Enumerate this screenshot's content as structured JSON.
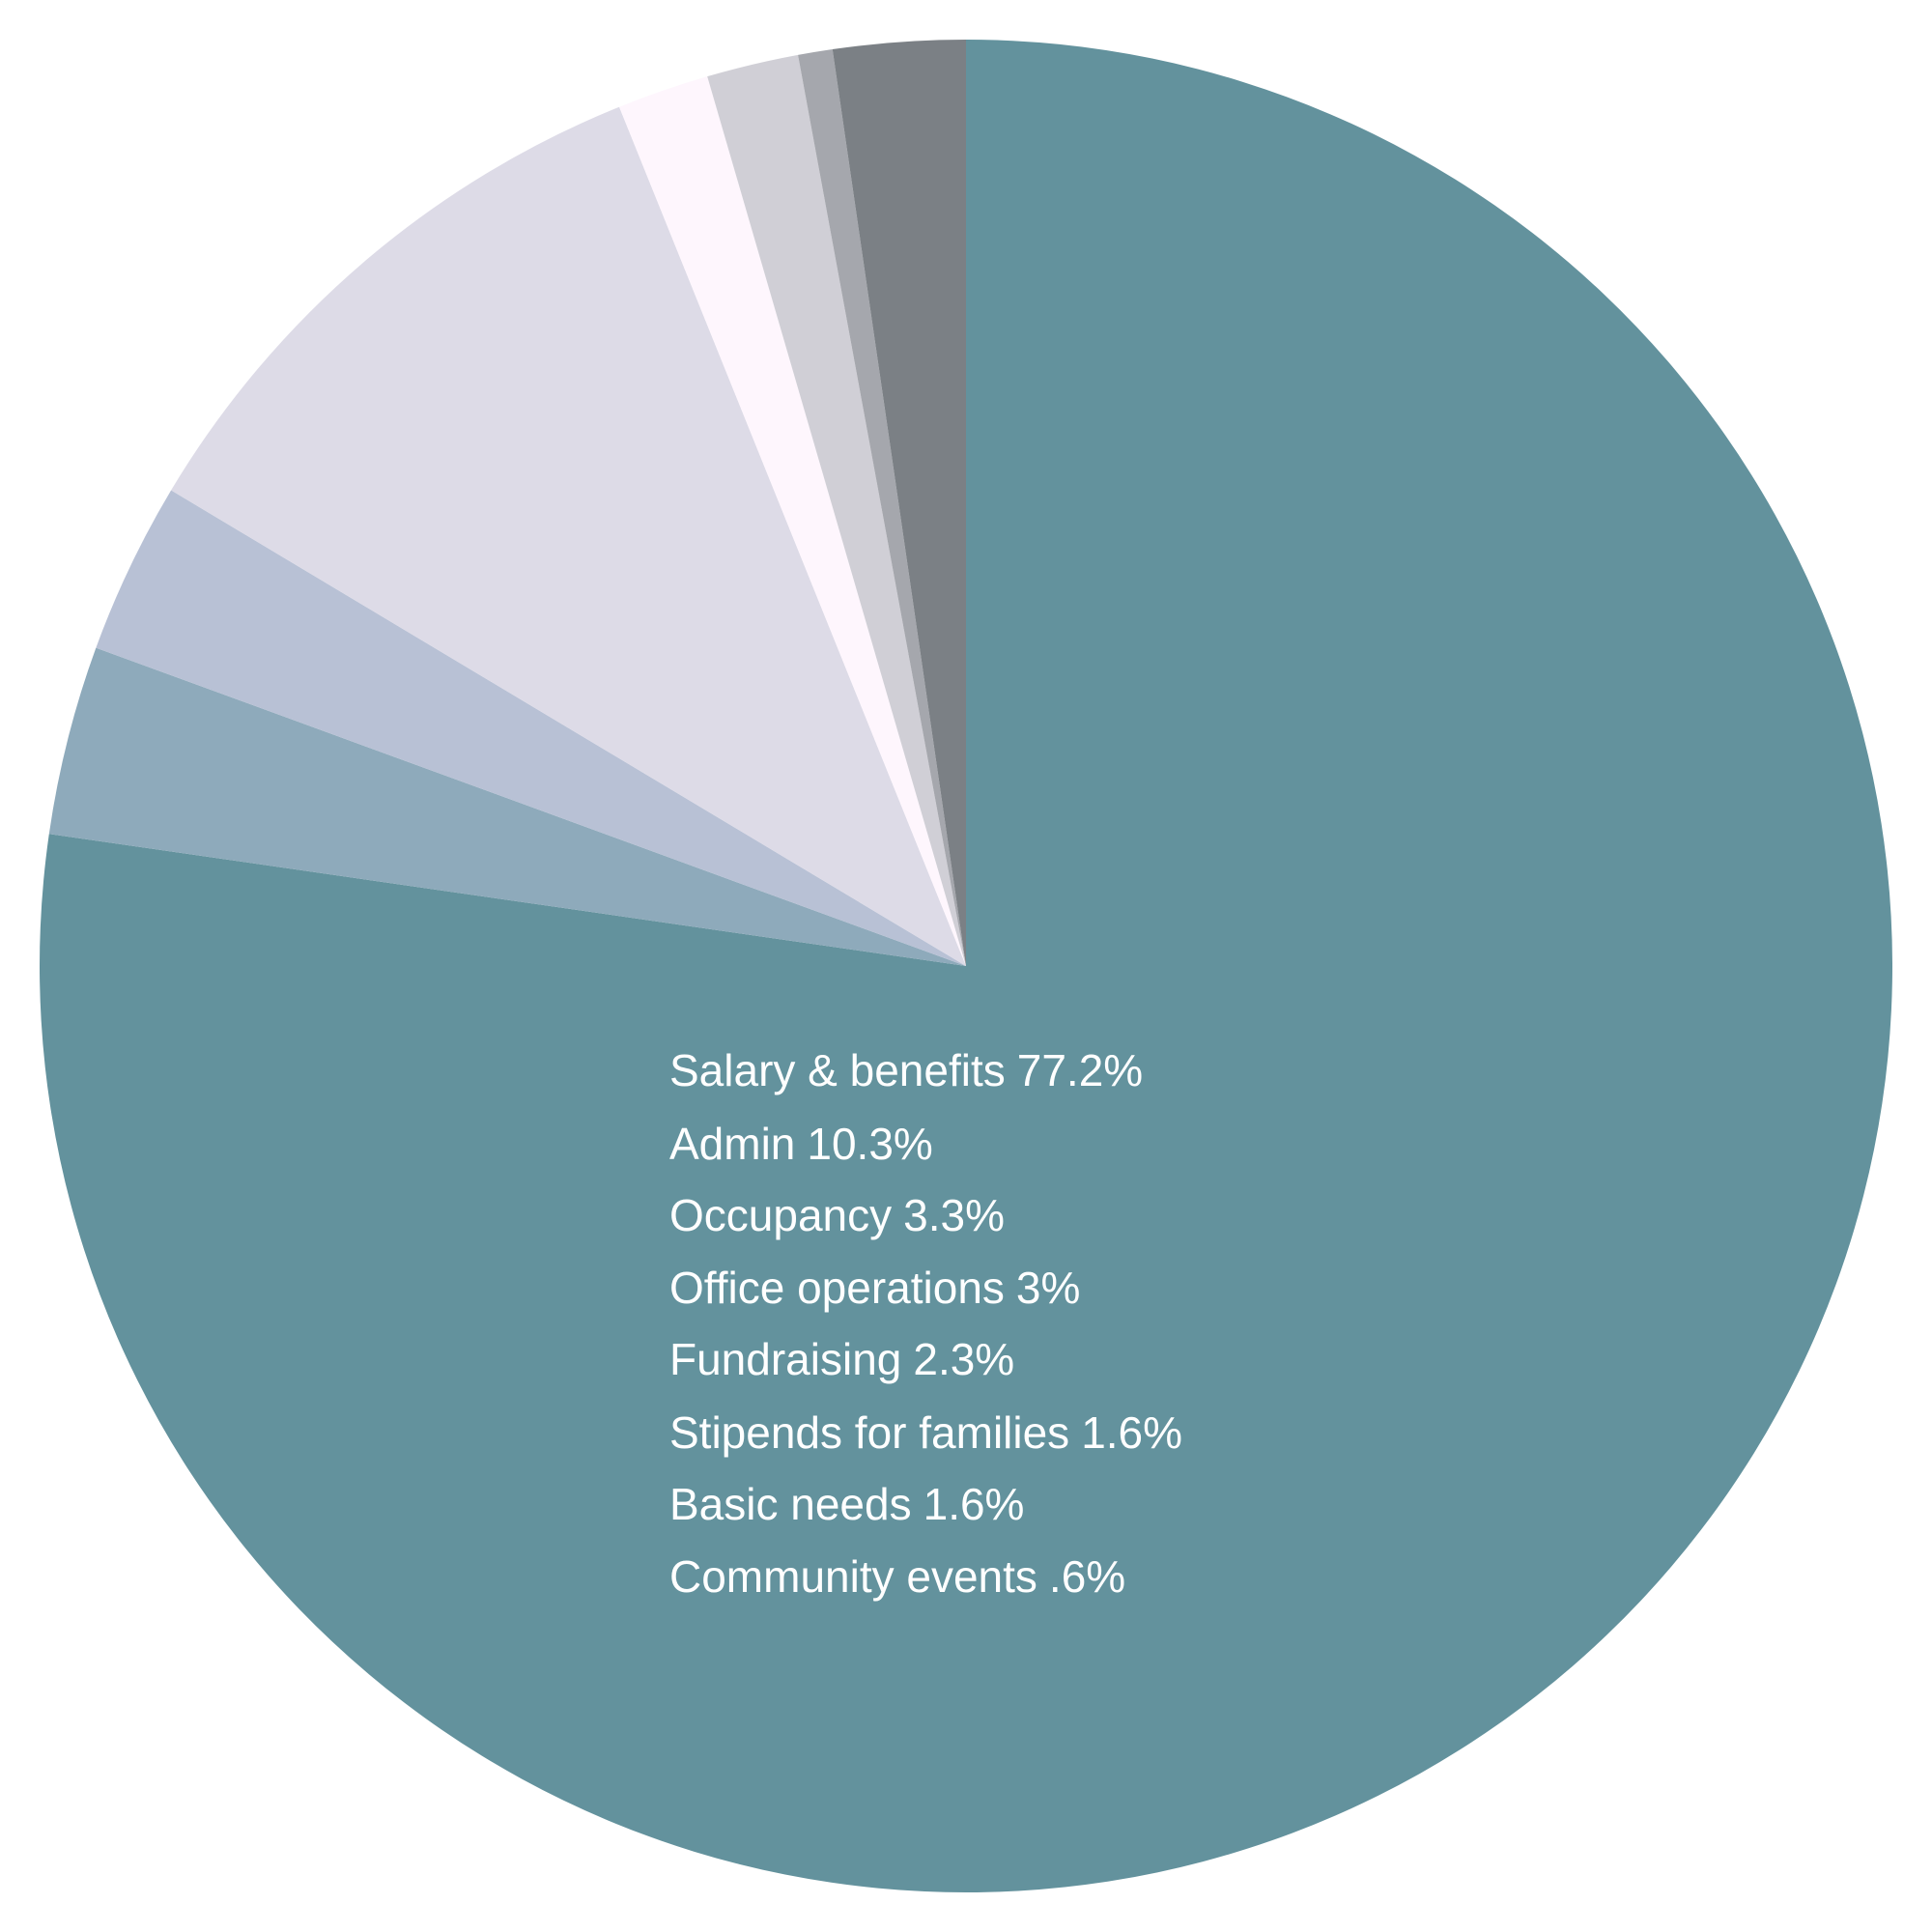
{
  "chart_data": {
    "type": "pie",
    "categories": [
      "Salary & benefits",
      "Occupancy",
      "Office operations",
      "Admin",
      "Stipends for families",
      "Basic needs",
      "Community events",
      "Fundraising"
    ],
    "values": [
      77.2,
      3.3,
      3,
      10.3,
      1.6,
      1.6,
      0.6,
      2.3
    ],
    "value_labels": [
      "77.2%",
      "3.3%",
      "3%",
      "10.3%",
      "1.6%",
      "1.6%",
      ".6%",
      "2.3%"
    ],
    "colors": [
      "#63929d",
      "#8eaabb",
      "#b8c1d5",
      "#dddbe7",
      "#fef6fd",
      "#d0cfd6",
      "#a5a7ad",
      "#7b8085"
    ]
  }
}
